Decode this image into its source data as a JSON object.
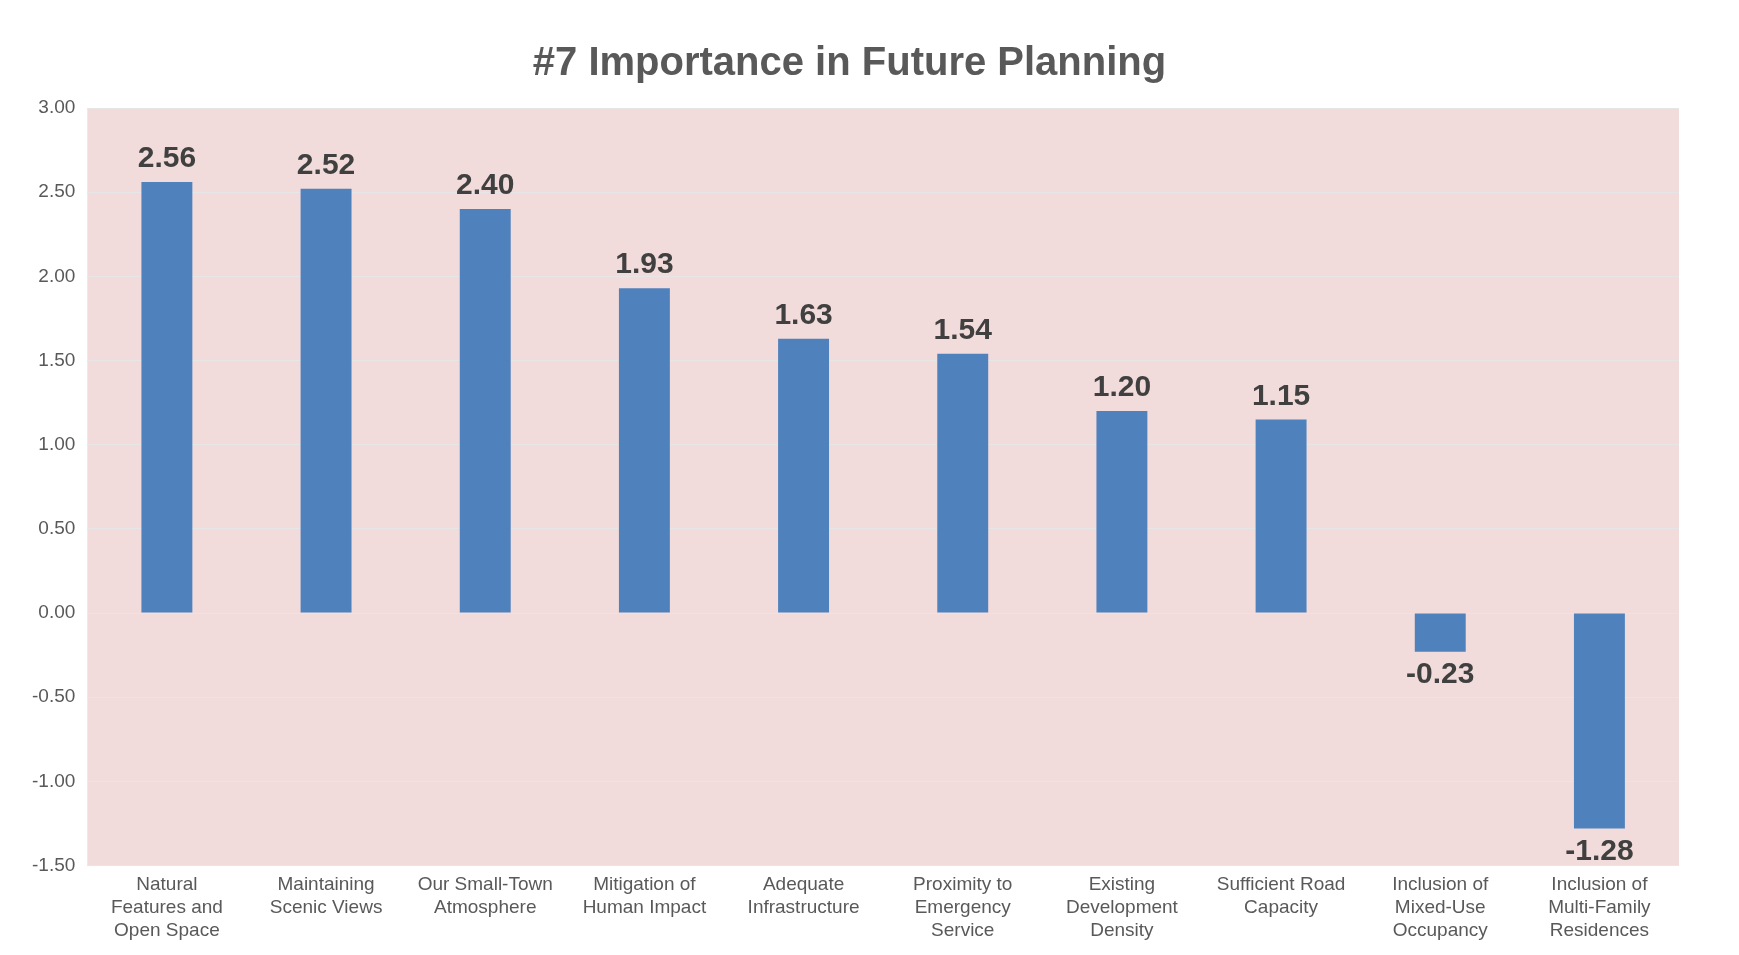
{
  "chart_data": {
    "type": "bar",
    "title": "#7 Importance in Future Planning",
    "categories": [
      "Natural Features and Open Space",
      "Maintaining Scenic Views",
      "Our Small-Town Atmosphere",
      "Mitigation of Human Impact",
      "Adequate Infrastructure",
      "Proximity to Emergency Service",
      "Existing Development Density",
      "Sufficient Road Capacity",
      "Inclusion of Mixed-Use Occupancy",
      "Inclusion of Multi-Family Residences"
    ],
    "values": [
      2.56,
      2.52,
      2.4,
      1.93,
      1.63,
      1.54,
      1.2,
      1.15,
      -0.23,
      -1.28
    ],
    "value_labels": [
      "2.56",
      "2.52",
      "2.40",
      "1.93",
      "1.63",
      "1.54",
      "1.20",
      "1.15",
      "-0.23",
      "-1.28"
    ],
    "color": "#4f81bd",
    "ylim": [
      -1.5,
      3
    ],
    "yticks": [
      {
        "value": -1.5,
        "label": "-1.50"
      },
      {
        "value": -1,
        "label": "-1.00"
      },
      {
        "value": -0.5,
        "label": "-0.50"
      },
      {
        "value": 0,
        "label": "0.00"
      },
      {
        "value": 0.5,
        "label": "0.50"
      },
      {
        "value": 1,
        "label": "1.00"
      },
      {
        "value": 1.5,
        "label": "1.50"
      },
      {
        "value": 2,
        "label": "2.00"
      },
      {
        "value": 2.5,
        "label": "2.50"
      },
      {
        "value": 3,
        "label": "3.00"
      }
    ],
    "grid": "y",
    "legend": false
  }
}
